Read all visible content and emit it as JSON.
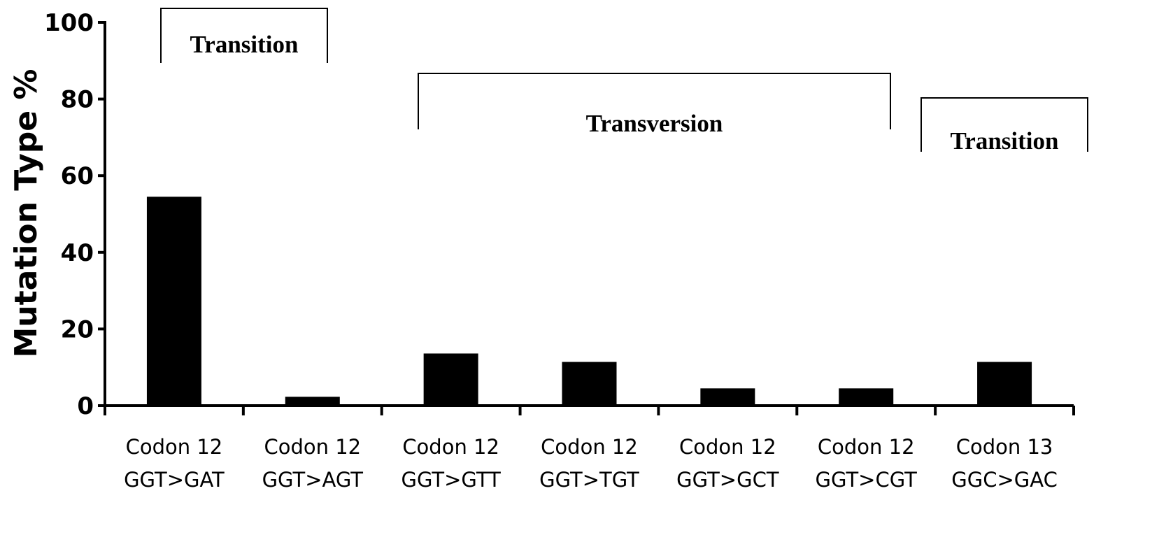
{
  "chart_data": {
    "type": "bar",
    "ylabel": "Mutation Type %",
    "xlabel": "",
    "ylim": [
      0,
      100
    ],
    "yticks": [
      0,
      20,
      40,
      60,
      80,
      100
    ],
    "grid": false,
    "categories": [
      [
        "Codon 12",
        "GGT>GAT"
      ],
      [
        "Codon 12",
        "GGT>AGT"
      ],
      [
        "Codon 12",
        "GGT>GTT"
      ],
      [
        "Codon 12",
        "GGT>TGT"
      ],
      [
        "Codon 12",
        "GGT>GCT"
      ],
      [
        "Codon 12",
        "GGT>CGT"
      ],
      [
        "Codon 13",
        "GGC>GAC"
      ]
    ],
    "values": [
      54.5,
      2.3,
      13.6,
      11.4,
      4.5,
      4.5,
      11.4
    ],
    "bar_color": "#000000",
    "annotations": [
      {
        "label": "Transition",
        "from_category": 0,
        "to_category": 1
      },
      {
        "label": "Transversion",
        "from_category": 2,
        "to_category": 5
      },
      {
        "label": "Transition",
        "from_category": 6,
        "to_category": 6
      }
    ]
  }
}
